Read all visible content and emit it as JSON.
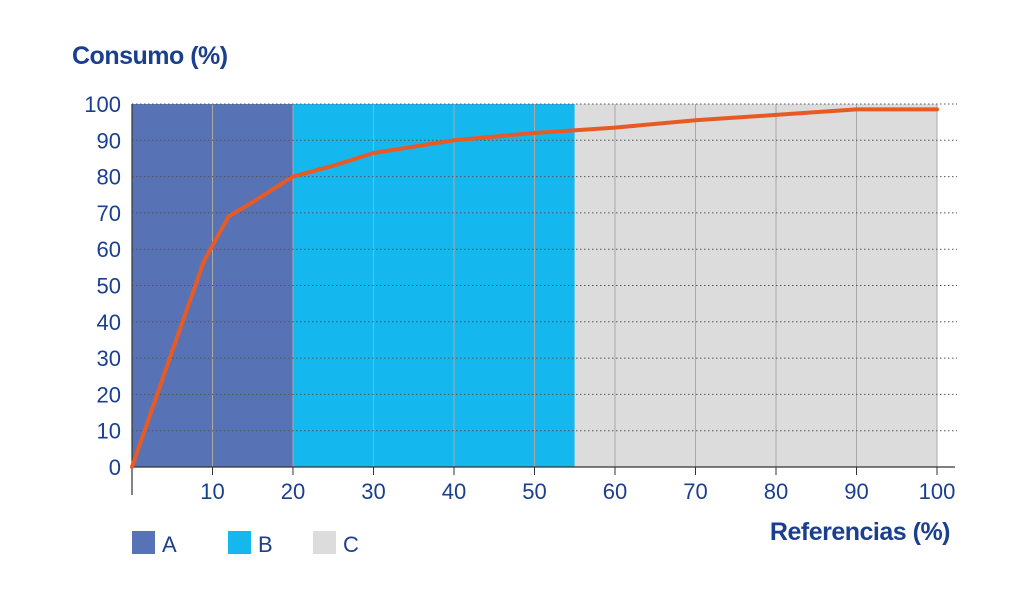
{
  "chart_data": {
    "type": "line",
    "ylabel": "Consumo (%)",
    "xlabel": "Referencias (%)",
    "xlim": [
      0,
      100
    ],
    "ylim": [
      0,
      100
    ],
    "x_ticks": [
      "10",
      "20",
      "30",
      "40",
      "50",
      "60",
      "70",
      "80",
      "90",
      "100"
    ],
    "y_ticks": [
      "0",
      "10",
      "20",
      "30",
      "40",
      "50",
      "60",
      "70",
      "80",
      "90",
      "100"
    ],
    "grid": true,
    "legend_position": "bottom-left",
    "zones": [
      {
        "name": "A",
        "x_start": 0,
        "x_end": 20,
        "color": "#5773b6"
      },
      {
        "name": "B",
        "x_start": 20,
        "x_end": 55,
        "color": "#14b7ee"
      },
      {
        "name": "C",
        "x_start": 55,
        "x_end": 100,
        "color": "#dcdcdc"
      }
    ],
    "series": [
      {
        "color": "#e85a24",
        "points": [
          [
            0,
            0
          ],
          [
            5,
            32
          ],
          [
            9,
            57
          ],
          [
            12,
            69
          ],
          [
            15,
            73
          ],
          [
            20,
            80
          ],
          [
            25,
            83
          ],
          [
            30,
            86.5
          ],
          [
            40,
            90
          ],
          [
            50,
            92
          ],
          [
            60,
            93.5
          ],
          [
            70,
            95.5
          ],
          [
            80,
            97
          ],
          [
            90,
            98.5
          ],
          [
            100,
            98.5
          ]
        ]
      }
    ]
  }
}
